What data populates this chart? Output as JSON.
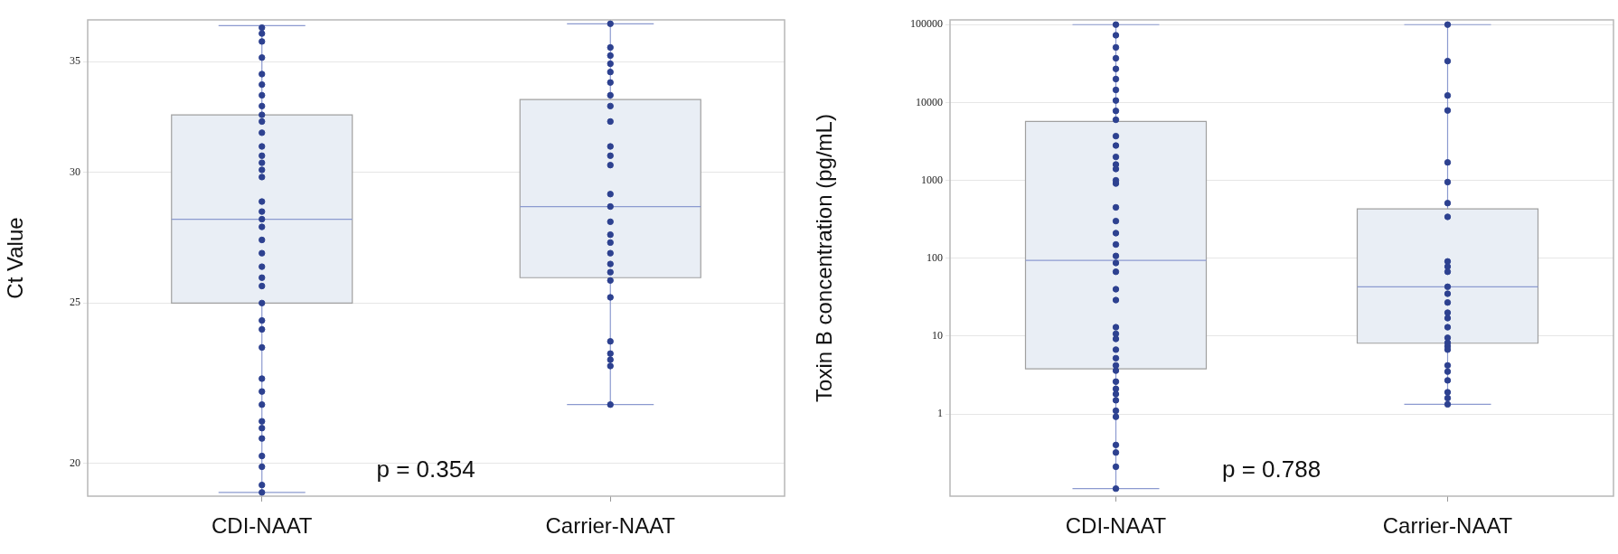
{
  "chart_data": [
    {
      "type": "box",
      "ylabel": "Ct Value",
      "categories": [
        "CDI-NAAT",
        "Carrier-NAAT"
      ],
      "log": true,
      "grid": "y",
      "ylim": [
        19.1,
        37.1
      ],
      "yticks": [
        20,
        25,
        30,
        35
      ],
      "annotations": [
        "p = 0.354"
      ],
      "series": [
        {
          "color": "#e9eef5",
          "boxes": [
            {
              "low": 19.2,
              "q1": 25.0,
              "median": 28.1,
              "q3": 32.5,
              "high": 36.8
            },
            {
              "low": 21.7,
              "q1": 25.9,
              "median": 28.6,
              "q3": 33.2,
              "high": 36.9
            }
          ]
        },
        {
          "type": "scatter",
          "color": "#2d4190",
          "marker": "circle",
          "x": [
            "CDI-NAAT",
            "CDI-NAAT",
            "CDI-NAAT",
            "CDI-NAAT",
            "CDI-NAAT",
            "CDI-NAAT",
            "CDI-NAAT",
            "CDI-NAAT",
            "CDI-NAAT",
            "CDI-NAAT",
            "CDI-NAAT",
            "CDI-NAAT",
            "CDI-NAAT",
            "CDI-NAAT",
            "CDI-NAAT",
            "CDI-NAAT",
            "CDI-NAAT",
            "CDI-NAAT",
            "CDI-NAAT",
            "CDI-NAAT",
            "CDI-NAAT",
            "CDI-NAAT",
            "CDI-NAAT",
            "CDI-NAAT",
            "CDI-NAAT",
            "CDI-NAAT",
            "CDI-NAAT",
            "CDI-NAAT",
            "CDI-NAAT",
            "CDI-NAAT",
            "CDI-NAAT",
            "CDI-NAAT",
            "CDI-NAAT",
            "CDI-NAAT",
            "CDI-NAAT",
            "CDI-NAAT",
            "CDI-NAAT",
            "CDI-NAAT",
            "CDI-NAAT",
            "Carrier-NAAT",
            "Carrier-NAAT",
            "Carrier-NAAT",
            "Carrier-NAAT",
            "Carrier-NAAT",
            "Carrier-NAAT",
            "Carrier-NAAT",
            "Carrier-NAAT",
            "Carrier-NAAT",
            "Carrier-NAAT",
            "Carrier-NAAT",
            "Carrier-NAAT",
            "Carrier-NAAT",
            "Carrier-NAAT",
            "Carrier-NAAT",
            "Carrier-NAAT",
            "Carrier-NAAT",
            "Carrier-NAAT",
            "Carrier-NAAT",
            "Carrier-NAAT",
            "Carrier-NAAT",
            "Carrier-NAAT",
            "Carrier-NAAT",
            "Carrier-NAAT",
            "Carrier-NAAT",
            "Carrier-NAAT",
            "Carrier-NAAT"
          ],
          "values": [
            36.7,
            36.4,
            36.0,
            35.2,
            34.4,
            33.9,
            33.4,
            32.9,
            32.5,
            32.2,
            31.7,
            31.1,
            30.7,
            30.4,
            30.1,
            29.8,
            28.8,
            28.4,
            28.1,
            27.8,
            27.3,
            26.8,
            26.3,
            25.9,
            25.6,
            25.0,
            24.4,
            24.1,
            23.5,
            22.5,
            22.1,
            21.7,
            21.2,
            21.0,
            20.7,
            20.2,
            19.9,
            19.4,
            19.2,
            36.9,
            35.7,
            35.3,
            34.9,
            34.5,
            34.0,
            33.4,
            32.9,
            32.2,
            31.1,
            30.7,
            30.3,
            29.1,
            28.6,
            28.0,
            27.5,
            27.2,
            26.8,
            26.4,
            26.1,
            25.8,
            25.2,
            23.7,
            23.3,
            23.1,
            22.9,
            21.7
          ]
        }
      ]
    },
    {
      "type": "box",
      "ylabel": "Toxin B concentration (pg/mL)",
      "categories": [
        "CDI-NAAT",
        "Carrier-NAAT"
      ],
      "log": true,
      "grid": "y",
      "ylim": [
        0.088,
        115000
      ],
      "yticks": [
        1,
        10,
        100,
        1000,
        10000,
        100000
      ],
      "annotations": [
        "p = 0.788"
      ],
      "series": [
        {
          "color": "#e9eef5",
          "boxes": [
            {
              "low": 0.11,
              "q1": 3.8,
              "median": 94,
              "q3": 5700,
              "high": 100000
            },
            {
              "low": 1.33,
              "q1": 8.1,
              "median": 43,
              "q3": 430,
              "high": 100000
            }
          ]
        },
        {
          "type": "scatter",
          "color": "#2d4190",
          "marker": "circle",
          "x": [
            "CDI-NAAT",
            "CDI-NAAT",
            "CDI-NAAT",
            "CDI-NAAT",
            "CDI-NAAT",
            "CDI-NAAT",
            "CDI-NAAT",
            "CDI-NAAT",
            "CDI-NAAT",
            "CDI-NAAT",
            "CDI-NAAT",
            "CDI-NAAT",
            "CDI-NAAT",
            "CDI-NAAT",
            "CDI-NAAT",
            "CDI-NAAT",
            "CDI-NAAT",
            "CDI-NAAT",
            "CDI-NAAT",
            "CDI-NAAT",
            "CDI-NAAT",
            "CDI-NAAT",
            "CDI-NAAT",
            "CDI-NAAT",
            "CDI-NAAT",
            "CDI-NAAT",
            "CDI-NAAT",
            "CDI-NAAT",
            "CDI-NAAT",
            "CDI-NAAT",
            "CDI-NAAT",
            "CDI-NAAT",
            "CDI-NAAT",
            "CDI-NAAT",
            "CDI-NAAT",
            "CDI-NAAT",
            "CDI-NAAT",
            "CDI-NAAT",
            "CDI-NAAT",
            "CDI-NAAT",
            "CDI-NAAT",
            "CDI-NAAT",
            "CDI-NAAT",
            "Carrier-NAAT",
            "Carrier-NAAT",
            "Carrier-NAAT",
            "Carrier-NAAT",
            "Carrier-NAAT",
            "Carrier-NAAT",
            "Carrier-NAAT",
            "Carrier-NAAT",
            "Carrier-NAAT",
            "Carrier-NAAT",
            "Carrier-NAAT",
            "Carrier-NAAT",
            "Carrier-NAAT",
            "Carrier-NAAT",
            "Carrier-NAAT",
            "Carrier-NAAT",
            "Carrier-NAAT",
            "Carrier-NAAT",
            "Carrier-NAAT",
            "Carrier-NAAT",
            "Carrier-NAAT",
            "Carrier-NAAT",
            "Carrier-NAAT",
            "Carrier-NAAT",
            "Carrier-NAAT",
            "Carrier-NAAT",
            "Carrier-NAAT"
          ],
          "values": [
            100000,
            73000,
            51000,
            37000,
            27000,
            20000,
            14500,
            10600,
            7800,
            6000,
            3700,
            2800,
            2000,
            1600,
            1400,
            1000,
            910,
            450,
            300,
            210,
            150,
            107,
            87,
            67,
            40,
            29,
            13,
            10.7,
            9.2,
            6.7,
            5.2,
            4.2,
            3.6,
            2.6,
            2.1,
            1.8,
            1.5,
            1.1,
            0.92,
            0.4,
            0.32,
            0.21,
            0.11,
            100000,
            34000,
            12300,
            7900,
            1700,
            950,
            510,
            340,
            91,
            78,
            67,
            43,
            35,
            27,
            20,
            17,
            13,
            9.5,
            8.2,
            7.4,
            6.7,
            4.2,
            3.5,
            2.7,
            1.9,
            1.6,
            1.33
          ]
        }
      ]
    }
  ]
}
